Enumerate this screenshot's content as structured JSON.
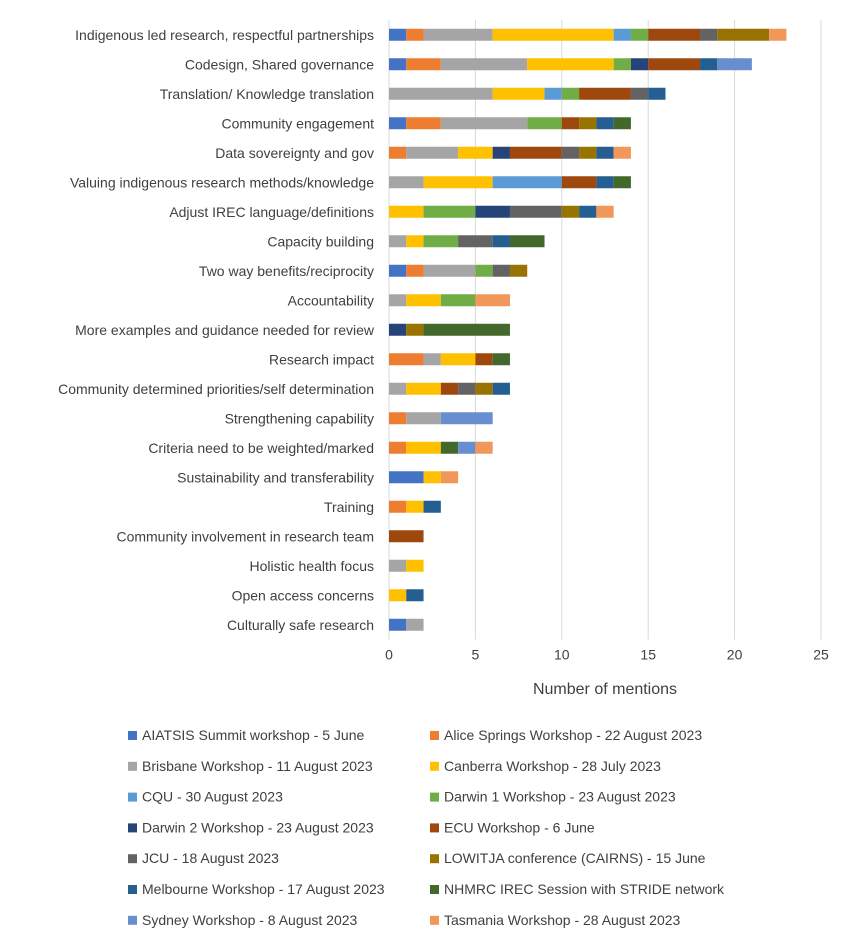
{
  "chart_data": {
    "type": "bar",
    "orientation": "horizontal",
    "stacked": true,
    "title": "",
    "xlabel": "Number of mentions",
    "ylabel": "",
    "xlim": [
      0,
      25
    ],
    "xticks": [
      "0",
      "5",
      "10",
      "15",
      "20",
      "25"
    ],
    "grid": true,
    "legend_position": "bottom",
    "categories": [
      "Indigenous led research, respectful partnerships",
      "Codesign, Shared governance",
      "Translation/ Knowledge translation",
      "Community engagement",
      "Data sovereignty and gov",
      "Valuing indigenous research methods/knowledge",
      "Adjust IREC language/definitions",
      "Capacity building",
      "Two way benefits/reciprocity",
      "Accountability",
      "More examples and guidance needed for review",
      "Research impact",
      "Community determined priorities/self determination",
      "Strengthening capability",
      "Criteria need to be weighted/marked",
      "Sustainability and transferability",
      "Training",
      "Community involvement in research team",
      "Holistic health focus",
      "Open access concerns",
      "Culturally safe research"
    ],
    "series": [
      {
        "name": "AIATSIS Summit workshop - 5 June",
        "color": "#4472C4",
        "values": [
          1,
          1,
          0,
          1,
          0,
          0,
          0,
          0,
          1,
          0,
          0,
          0,
          0,
          0,
          0,
          2,
          0,
          0,
          0,
          0,
          1
        ]
      },
      {
        "name": "Alice Springs Workshop - 22 August 2023",
        "color": "#ED7D31",
        "values": [
          1,
          2,
          0,
          2,
          1,
          0,
          0,
          0,
          1,
          0,
          0,
          2,
          0,
          1,
          1,
          0,
          1,
          0,
          0,
          0,
          0
        ]
      },
      {
        "name": "Brisbane Workshop - 11 August 2023",
        "color": "#A5A5A5",
        "values": [
          4,
          5,
          6,
          5,
          3,
          2,
          0,
          1,
          3,
          1,
          0,
          1,
          1,
          2,
          0,
          0,
          0,
          0,
          1,
          0,
          1
        ]
      },
      {
        "name": "Canberra Workshop - 28 July 2023",
        "color": "#FFC000",
        "values": [
          7,
          5,
          3,
          0,
          2,
          4,
          2,
          1,
          0,
          2,
          0,
          2,
          2,
          0,
          2,
          1,
          1,
          0,
          1,
          1,
          0
        ]
      },
      {
        "name": "CQU - 30 August 2023",
        "color": "#5B9BD5",
        "values": [
          1,
          0,
          1,
          0,
          0,
          4,
          0,
          0,
          0,
          0,
          0,
          0,
          0,
          0,
          0,
          0,
          0,
          0,
          0,
          0,
          0
        ]
      },
      {
        "name": "Darwin 1 Workshop - 23 August 2023",
        "color": "#70AD47",
        "values": [
          1,
          1,
          1,
          2,
          0,
          0,
          3,
          2,
          1,
          2,
          0,
          0,
          0,
          0,
          0,
          0,
          0,
          0,
          0,
          0,
          0
        ]
      },
      {
        "name": "Darwin 2 Workshop - 23 August 2023",
        "color": "#264478",
        "values": [
          0,
          1,
          0,
          0,
          1,
          0,
          2,
          0,
          0,
          0,
          1,
          0,
          0,
          0,
          0,
          0,
          0,
          0,
          0,
          0,
          0
        ]
      },
      {
        "name": "ECU Workshop - 6 June",
        "color": "#9E480E",
        "values": [
          3,
          3,
          3,
          1,
          3,
          2,
          0,
          0,
          0,
          0,
          0,
          1,
          1,
          0,
          0,
          0,
          0,
          2,
          0,
          0,
          0
        ]
      },
      {
        "name": "JCU - 18 August 2023",
        "color": "#636363",
        "values": [
          1,
          0,
          1,
          0,
          1,
          0,
          3,
          2,
          1,
          0,
          0,
          0,
          1,
          0,
          0,
          0,
          0,
          0,
          0,
          0,
          0
        ]
      },
      {
        "name": "LOWITJA conference (CAIRNS) - 15 June",
        "color": "#997300",
        "values": [
          3,
          0,
          0,
          1,
          1,
          0,
          1,
          0,
          1,
          0,
          1,
          0,
          1,
          0,
          0,
          0,
          0,
          0,
          0,
          0,
          0
        ]
      },
      {
        "name": "Melbourne Workshop - 17 August 2023",
        "color": "#255E91",
        "values": [
          0,
          1,
          1,
          1,
          1,
          1,
          1,
          1,
          0,
          0,
          0,
          0,
          1,
          0,
          0,
          0,
          1,
          0,
          0,
          1,
          0
        ]
      },
      {
        "name": "NHMRC IREC Session with STRIDE network",
        "color": "#43682B",
        "values": [
          0,
          0,
          0,
          1,
          0,
          1,
          0,
          2,
          0,
          0,
          5,
          1,
          0,
          0,
          1,
          0,
          0,
          0,
          0,
          0,
          0
        ]
      },
      {
        "name": "Sydney Workshop - 8 August 2023",
        "color": "#698ED0",
        "values": [
          0,
          2,
          0,
          0,
          0,
          0,
          0,
          0,
          0,
          0,
          0,
          0,
          0,
          3,
          1,
          0,
          0,
          0,
          0,
          0,
          0
        ]
      },
      {
        "name": "Tasmania Workshop - 28 August 2023",
        "color": "#F1975A",
        "values": [
          1,
          0,
          0,
          0,
          1,
          0,
          1,
          0,
          0,
          2,
          0,
          0,
          0,
          0,
          1,
          1,
          0,
          0,
          0,
          0,
          0
        ]
      }
    ]
  }
}
